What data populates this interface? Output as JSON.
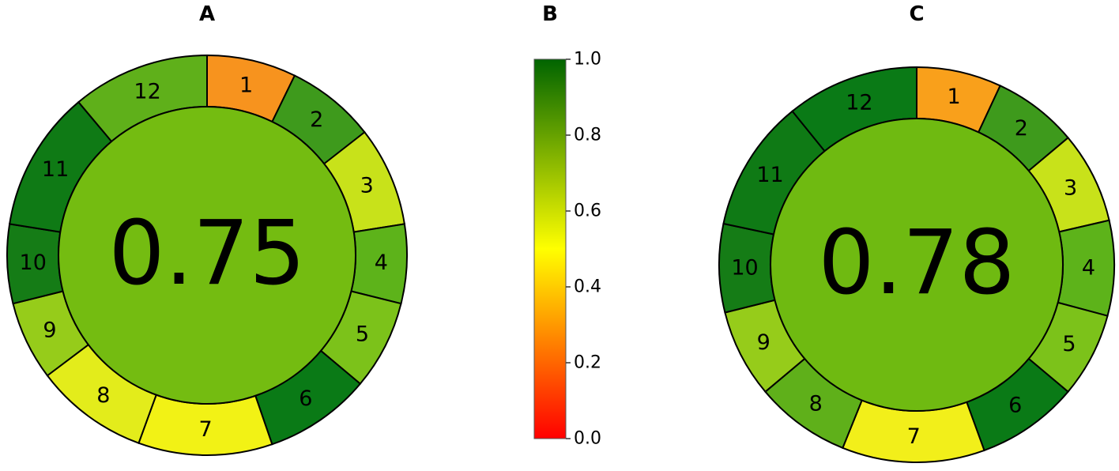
{
  "chart_data": [
    {
      "type": "pie",
      "title": "A",
      "categories": [
        "1",
        "2",
        "3",
        "4",
        "5",
        "6",
        "7",
        "8",
        "9",
        "10",
        "11",
        "12"
      ],
      "values": [
        26,
        26,
        29,
        23,
        26,
        31,
        39,
        33,
        23,
        23,
        41,
        40
      ],
      "colors": [
        "#f7931e",
        "#3e9a1c",
        "#c8e21a",
        "#5db31a",
        "#7cc21a",
        "#0a7a16",
        "#f2f215",
        "#e3ec1b",
        "#96cc1a",
        "#157c16",
        "#0f7a15",
        "#5fb01a"
      ],
      "score": 0.75,
      "score_color": "#74bc11"
    },
    {
      "type": "colorbar",
      "title": "B",
      "ylim": [
        0,
        1
      ],
      "yticks": [
        {
          "value": 0,
          "label": "0.0"
        },
        0.2,
        0.4,
        0.6,
        0.8,
        {
          "value": 1,
          "label": "1.0"
        }
      ],
      "colors": [
        "#ff0000",
        "#ffff00",
        "#006400"
      ]
    },
    {
      "type": "pie",
      "title": "C",
      "categories": [
        "1",
        "2",
        "3",
        "4",
        "5",
        "6",
        "7",
        "8",
        "9",
        "10",
        "11",
        "12"
      ],
      "values": [
        25,
        25,
        27,
        28,
        25,
        30,
        42,
        28,
        26,
        26,
        39,
        39
      ],
      "colors": [
        "#f9a01b",
        "#3e9a1c",
        "#c8e21a",
        "#5db31a",
        "#7cc21a",
        "#0a7a16",
        "#f2ef1a",
        "#5fb01a",
        "#96cc1a",
        "#157c16",
        "#0f7a15",
        "#0a7a16"
      ],
      "score": 0.78,
      "score_color": "#6fba11"
    }
  ]
}
